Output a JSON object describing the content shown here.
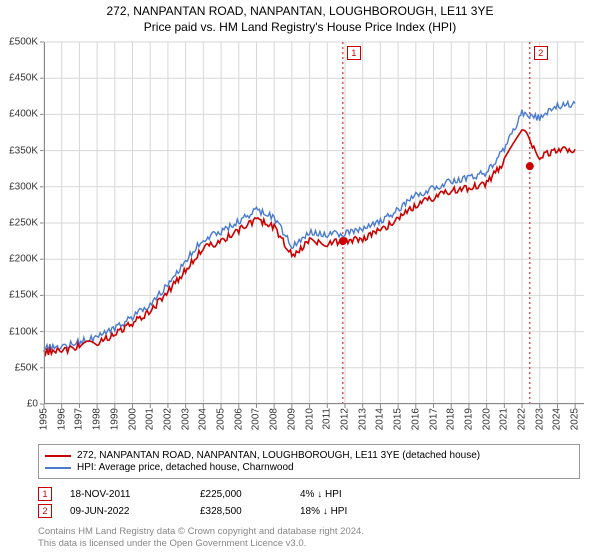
{
  "title_main": "272, NANPANTAN ROAD, NANPANTAN, LOUGHBOROUGH, LE11 3YE",
  "title_sub": "Price paid vs. HM Land Registry's House Price Index (HPI)",
  "title_fontsize": 12,
  "chart": {
    "type": "line",
    "background_color": "#ffffff",
    "grid_color": "#d7d7d7",
    "axis_color": "#888888",
    "x_axis": {
      "min": 1995,
      "max": 2025.5,
      "ticks": [
        1995,
        1996,
        1997,
        1998,
        1999,
        2000,
        2001,
        2002,
        2003,
        2004,
        2005,
        2006,
        2007,
        2008,
        2009,
        2010,
        2011,
        2012,
        2013,
        2014,
        2015,
        2016,
        2017,
        2018,
        2019,
        2020,
        2021,
        2022,
        2023,
        2024,
        2025
      ],
      "tick_fontsize": 10,
      "tick_rotation": -90
    },
    "y_axis": {
      "min": 0,
      "max": 500000,
      "ticks": [
        0,
        50000,
        100000,
        150000,
        200000,
        250000,
        300000,
        350000,
        400000,
        450000,
        500000
      ],
      "tick_labels": [
        "£0",
        "£50K",
        "£100K",
        "£150K",
        "£200K",
        "£250K",
        "£300K",
        "£350K",
        "£400K",
        "£450K",
        "£500K"
      ],
      "tick_fontsize": 10
    },
    "series": [
      {
        "name": "272, NANPANTAN ROAD, NANPANTAN, LOUGHBOROUGH, LE11 3YE (detached house)",
        "color": "#cc0000",
        "line_width": 1.6,
        "x": [
          1995,
          1996,
          1997,
          1998,
          1999,
          2000,
          2001,
          2002,
          2003,
          2004,
          2005,
          2006,
          2007,
          2008,
          2009,
          2010,
          2011,
          2012,
          2013,
          2014,
          2015,
          2016,
          2017,
          2018,
          2019,
          2020,
          2021,
          2022,
          2023,
          2024,
          2025
        ],
        "y": [
          72000,
          73000,
          80000,
          85000,
          96000,
          112000,
          128000,
          155000,
          185000,
          215000,
          225000,
          240000,
          255000,
          245000,
          205000,
          225000,
          222000,
          225000,
          228000,
          240000,
          255000,
          275000,
          285000,
          295000,
          298000,
          305000,
          335000,
          380000,
          342000,
          350000,
          352000
        ]
      },
      {
        "name": "HPI: Average price, detached house, Charnwood",
        "color": "#4a7bd0",
        "line_width": 1.4,
        "x": [
          1995,
          1996,
          1997,
          1998,
          1999,
          2000,
          2001,
          2002,
          2003,
          2004,
          2005,
          2006,
          2007,
          2008,
          2009,
          2010,
          2011,
          2012,
          2013,
          2014,
          2015,
          2016,
          2017,
          2018,
          2019,
          2020,
          2021,
          2022,
          2023,
          2024,
          2025
        ],
        "y": [
          78000,
          79000,
          86000,
          92000,
          104000,
          120000,
          138000,
          165000,
          198000,
          228000,
          238000,
          252000,
          268000,
          258000,
          218000,
          238000,
          234000,
          236000,
          240000,
          252000,
          268000,
          288000,
          298000,
          308000,
          312000,
          320000,
          352000,
          402000,
          395000,
          412000,
          415000
        ]
      }
    ],
    "sale_markers": [
      {
        "label": "1",
        "year": 2011.88,
        "price": 225000,
        "line_color": "#cc0000",
        "line_dash": "2,3",
        "dot_color": "#cc0000"
      },
      {
        "label": "2",
        "year": 2022.44,
        "price": 328500,
        "line_color": "#cc0000",
        "line_dash": "2,3",
        "dot_color": "#cc0000"
      }
    ]
  },
  "legend": {
    "border_color": "#999999",
    "items": [
      {
        "color": "#cc0000",
        "label": "272, NANPANTAN ROAD, NANPANTAN, LOUGHBOROUGH, LE11 3YE (detached house)"
      },
      {
        "color": "#4a7bd0",
        "label": "HPI: Average price, detached house, Charnwood"
      }
    ]
  },
  "sales": [
    {
      "marker": "1",
      "date": "18-NOV-2011",
      "price": "£225,000",
      "diff": "4% ↓ HPI"
    },
    {
      "marker": "2",
      "date": "09-JUN-2022",
      "price": "£328,500",
      "diff": "18% ↓ HPI"
    }
  ],
  "footer_line1": "Contains HM Land Registry data © Crown copyright and database right 2024.",
  "footer_line2": "This data is licensed under the Open Government Licence v3.0."
}
